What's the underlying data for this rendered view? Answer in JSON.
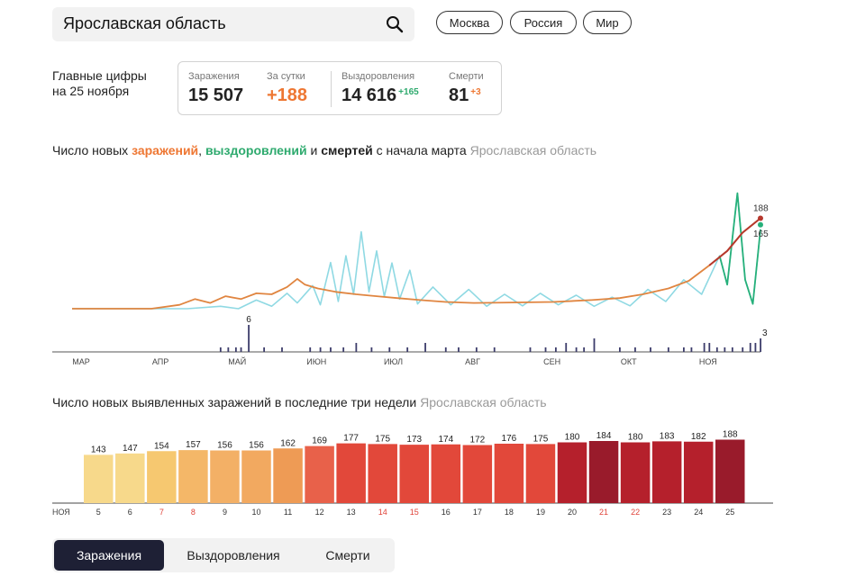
{
  "search": {
    "value": "Ярославская область"
  },
  "pills": [
    "Москва",
    "Россия",
    "Мир"
  ],
  "main_figures": {
    "line1": "Главные цифры",
    "line2": "на 25 ноября"
  },
  "stats": {
    "infections_label": "Заражения",
    "infections_value": "15 507",
    "day_label": "За сутки",
    "day_value": "+188",
    "recovered_label": "Выздоровления",
    "recovered_value": "14 616",
    "recovered_delta": "+165",
    "deaths_label": "Смерти",
    "deaths_value": "81",
    "deaths_delta": "+3"
  },
  "chart1_title": {
    "part1": "Число новых ",
    "infections": "заражений",
    "comma": ", ",
    "recoveries": "выздоровлений",
    "and": " и ",
    "deaths": "смертей",
    "rest": " с начала марта",
    "region": "Ярославская область"
  },
  "chart2_title": {
    "text": "Число новых выявленных заражений в последние три недели",
    "region": "Ярославская область"
  },
  "tabs": {
    "infections": "Заражения",
    "recoveries": "Выздоровления",
    "deaths": "Смерти"
  },
  "colors": {
    "infections": "#e08540",
    "recoveries": "#8fd9e3",
    "recoveries_recent": "#26b07a",
    "deaths": "#3d3d6b",
    "accent": "#ee7733",
    "tab_active": "#1e2035"
  },
  "chart_data": [
    {
      "type": "line",
      "title": "Число новых заражений, выздоровлений и смертей с начала марта",
      "x_tick_labels": [
        "МАР",
        "АПР",
        "МАЙ",
        "ИЮН",
        "ИЮЛ",
        "АВГ",
        "СЕН",
        "ОКТ",
        "НОЯ"
      ],
      "x_range": [
        "2020-03-01",
        "2020-11-25"
      ],
      "y_range": [
        0,
        260
      ],
      "series": [
        {
          "name": "заражений",
          "color": "#e08540",
          "points": [
            [
              "2020-03-01",
              0
            ],
            [
              "2020-04-01",
              0
            ],
            [
              "2020-04-12",
              8
            ],
            [
              "2020-04-18",
              20
            ],
            [
              "2020-04-24",
              12
            ],
            [
              "2020-04-30",
              26
            ],
            [
              "2020-05-06",
              20
            ],
            [
              "2020-05-12",
              32
            ],
            [
              "2020-05-18",
              30
            ],
            [
              "2020-05-24",
              45
            ],
            [
              "2020-05-28",
              62
            ],
            [
              "2020-05-31",
              50
            ],
            [
              "2020-06-05",
              42
            ],
            [
              "2020-06-12",
              35
            ],
            [
              "2020-06-20",
              30
            ],
            [
              "2020-06-28",
              26
            ],
            [
              "2020-07-06",
              22
            ],
            [
              "2020-07-15",
              18
            ],
            [
              "2020-07-25",
              14
            ],
            [
              "2020-08-05",
              12
            ],
            [
              "2020-08-20",
              13
            ],
            [
              "2020-09-05",
              14
            ],
            [
              "2020-09-20",
              18
            ],
            [
              "2020-10-01",
              22
            ],
            [
              "2020-10-10",
              30
            ],
            [
              "2020-10-20",
              42
            ],
            [
              "2020-10-28",
              58
            ],
            [
              "2020-11-05",
              90
            ],
            [
              "2020-11-12",
              120
            ],
            [
              "2020-11-18",
              158
            ],
            [
              "2020-11-25",
              188
            ]
          ]
        },
        {
          "name": "выздоровлений",
          "color": "#8fd9e3",
          "points": [
            [
              "2020-03-01",
              0
            ],
            [
              "2020-04-15",
              0
            ],
            [
              "2020-04-28",
              5
            ],
            [
              "2020-05-05",
              0
            ],
            [
              "2020-05-12",
              18
            ],
            [
              "2020-05-18",
              5
            ],
            [
              "2020-05-24",
              32
            ],
            [
              "2020-05-28",
              12
            ],
            [
              "2020-06-03",
              48
            ],
            [
              "2020-06-06",
              8
            ],
            [
              "2020-06-10",
              96
            ],
            [
              "2020-06-13",
              15
            ],
            [
              "2020-06-16",
              110
            ],
            [
              "2020-06-19",
              30
            ],
            [
              "2020-06-22",
              160
            ],
            [
              "2020-06-25",
              35
            ],
            [
              "2020-06-28",
              120
            ],
            [
              "2020-07-01",
              25
            ],
            [
              "2020-07-04",
              95
            ],
            [
              "2020-07-07",
              20
            ],
            [
              "2020-07-11",
              80
            ],
            [
              "2020-07-14",
              10
            ],
            [
              "2020-07-20",
              45
            ],
            [
              "2020-07-27",
              8
            ],
            [
              "2020-08-03",
              40
            ],
            [
              "2020-08-10",
              5
            ],
            [
              "2020-08-17",
              30
            ],
            [
              "2020-08-24",
              6
            ],
            [
              "2020-08-31",
              32
            ],
            [
              "2020-09-07",
              8
            ],
            [
              "2020-09-14",
              28
            ],
            [
              "2020-09-21",
              5
            ],
            [
              "2020-09-28",
              24
            ],
            [
              "2020-10-05",
              6
            ],
            [
              "2020-10-12",
              40
            ],
            [
              "2020-10-19",
              15
            ],
            [
              "2020-10-26",
              60
            ],
            [
              "2020-11-02",
              30
            ],
            [
              "2020-11-09",
              110
            ],
            [
              "2020-11-12",
              50
            ],
            [
              "2020-11-16",
              240
            ],
            [
              "2020-11-19",
              60
            ],
            [
              "2020-11-22",
              10
            ],
            [
              "2020-11-25",
              165
            ]
          ]
        },
        {
          "name": "смертей",
          "color": "#3d3d6b",
          "bars": [
            [
              "2020-04-28",
              1
            ],
            [
              "2020-05-01",
              1
            ],
            [
              "2020-05-04",
              1
            ],
            [
              "2020-05-06",
              1
            ],
            [
              "2020-05-09",
              6
            ],
            [
              "2020-05-15",
              1
            ],
            [
              "2020-05-22",
              1
            ],
            [
              "2020-06-02",
              1
            ],
            [
              "2020-06-06",
              1
            ],
            [
              "2020-06-10",
              1
            ],
            [
              "2020-06-15",
              1
            ],
            [
              "2020-06-20",
              2
            ],
            [
              "2020-06-26",
              1
            ],
            [
              "2020-07-03",
              1
            ],
            [
              "2020-07-10",
              1
            ],
            [
              "2020-07-17",
              2
            ],
            [
              "2020-07-25",
              1
            ],
            [
              "2020-07-30",
              1
            ],
            [
              "2020-08-06",
              1
            ],
            [
              "2020-08-13",
              1
            ],
            [
              "2020-08-27",
              1
            ],
            [
              "2020-09-02",
              1
            ],
            [
              "2020-09-06",
              1
            ],
            [
              "2020-09-10",
              2
            ],
            [
              "2020-09-14",
              1
            ],
            [
              "2020-09-17",
              1
            ],
            [
              "2020-09-21",
              3
            ],
            [
              "2020-10-01",
              1
            ],
            [
              "2020-10-07",
              1
            ],
            [
              "2020-10-13",
              1
            ],
            [
              "2020-10-20",
              1
            ],
            [
              "2020-10-26",
              1
            ],
            [
              "2020-10-29",
              1
            ],
            [
              "2020-11-03",
              2
            ],
            [
              "2020-11-05",
              2
            ],
            [
              "2020-11-08",
              1
            ],
            [
              "2020-11-11",
              1
            ],
            [
              "2020-11-14",
              1
            ],
            [
              "2020-11-18",
              1
            ],
            [
              "2020-11-21",
              2
            ],
            [
              "2020-11-23",
              2
            ],
            [
              "2020-11-25",
              3
            ]
          ]
        }
      ],
      "annotations": [
        "6",
        "188",
        "165",
        "3"
      ]
    },
    {
      "type": "bar",
      "title": "Число новых выявленных заражений в последние три недели",
      "x_prefix": "НОЯ",
      "categories": [
        "5",
        "6",
        "7",
        "8",
        "9",
        "10",
        "11",
        "12",
        "13",
        "14",
        "15",
        "16",
        "17",
        "18",
        "19",
        "20",
        "21",
        "22",
        "23",
        "24",
        "25"
      ],
      "values": [
        143,
        147,
        154,
        157,
        156,
        156,
        162,
        169,
        177,
        175,
        173,
        174,
        172,
        176,
        175,
        180,
        184,
        180,
        183,
        182,
        188
      ],
      "weekend_label_color": "#e0443a",
      "weekends": [
        "7",
        "8",
        "14",
        "15",
        "21",
        "22"
      ],
      "colors": [
        "#f7d98b",
        "#f7d98b",
        "#f6c870",
        "#f4b768",
        "#f3b066",
        "#f2a960",
        "#ee9b55",
        "#e8614a",
        "#e2483a",
        "#e2483a",
        "#e2483a",
        "#e2483a",
        "#e2483a",
        "#e2483a",
        "#e2483a",
        "#b5202c",
        "#991b2b",
        "#b5202c",
        "#b5202c",
        "#b5202c",
        "#991b2b"
      ],
      "ylim": [
        0,
        200
      ]
    }
  ]
}
